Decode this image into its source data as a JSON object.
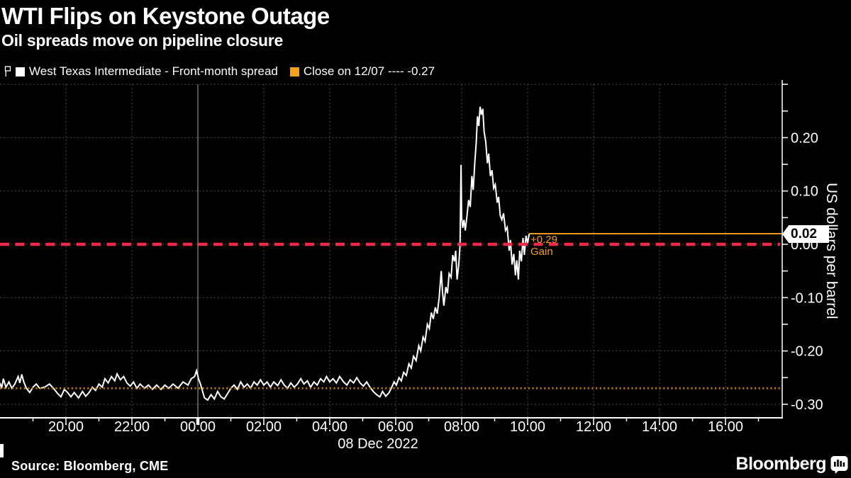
{
  "header": {
    "title": "WTI Flips on Keystone Outage",
    "subtitle": "Oil spreads move on pipeline closure"
  },
  "legend": {
    "series_label": "West Texas Intermediate - Front-month spread",
    "close_label": "Close on 12/07 ---- -0.27"
  },
  "axes": {
    "y_title": "US dollars per barrel",
    "x_date_label": "08 Dec 2022"
  },
  "annotations": {
    "last_price": "0.02",
    "change": "+0.29",
    "change_word": "Gain"
  },
  "footer": {
    "source": "Source: Bloomberg, CME",
    "brand": "Bloomberg"
  },
  "colors": {
    "background": "#000000",
    "series": "#ffffff",
    "zero_line_red": "#f0294b",
    "prior_close_dotted_orange": "#c07a0a",
    "last_price_orange": "#f0981e",
    "legend_orange": "#f59f1e",
    "grid": "#4f4f4f",
    "midnight_grid": "#909090",
    "axis": "#ffffff"
  },
  "chart_data": {
    "type": "line",
    "title": "WTI Flips on Keystone Outage",
    "subtitle": "Oil spreads move on pipeline closure",
    "xlabel": "08 Dec 2022",
    "ylabel": "US dollars per barrel",
    "x_unit": "hours since 2022-12-07 18:00",
    "xlim": [
      0,
      23.72
    ],
    "ylim": [
      -0.3255,
      0.3096
    ],
    "grid": "dashed gray both axes; solid gray vertical line at midnight",
    "legend_position": "top-left above plot",
    "x_ticks_major": [
      {
        "t": 2,
        "label": "20:00"
      },
      {
        "t": 4,
        "label": "22:00"
      },
      {
        "t": 6,
        "label": "00:00",
        "midnight": true
      },
      {
        "t": 8,
        "label": "02:00"
      },
      {
        "t": 10,
        "label": "04:00"
      },
      {
        "t": 12,
        "label": "06:00"
      },
      {
        "t": 14,
        "label": "08:00"
      },
      {
        "t": 16,
        "label": "10:00"
      },
      {
        "t": 18,
        "label": "12:00"
      },
      {
        "t": 20,
        "label": "14:00"
      },
      {
        "t": 22,
        "label": "16:00"
      }
    ],
    "x_ticks_minor": [
      1,
      3,
      5,
      7,
      9,
      11,
      13,
      15,
      17,
      19,
      21,
      23
    ],
    "y_ticks_labeled": [
      {
        "v": 0.2,
        "label": "0.20"
      },
      {
        "v": 0.1,
        "label": "0.10"
      },
      {
        "v": 0.0,
        "label": "0.00"
      },
      {
        "v": -0.1,
        "label": "-0.10"
      },
      {
        "v": -0.2,
        "label": "-0.20"
      },
      {
        "v": -0.3,
        "label": "-0.30"
      }
    ],
    "y_ticks_minor": [
      0.3,
      0.25,
      0.2,
      0.15,
      0.1,
      0.05,
      0.0,
      -0.05,
      -0.1,
      -0.15,
      -0.2,
      -0.25,
      -0.3
    ],
    "y_grid_values": [
      0.3,
      0.2,
      0.1,
      0.0,
      -0.1,
      -0.2,
      -0.3
    ],
    "reference_lines": [
      {
        "name": "zero",
        "value": 0.0,
        "style": "dashed",
        "color": "#f0294b"
      },
      {
        "name": "prior_close_12_07",
        "value": -0.27,
        "style": "dotted",
        "color": "#c07a0a"
      },
      {
        "name": "last_price",
        "value": 0.02,
        "style": "solid",
        "color": "#f0981e",
        "t_start": 16.05,
        "t_end": 23.72
      }
    ],
    "last_point": {
      "t": 16.05,
      "value": 0.02,
      "change_from_prior_close": 0.29
    },
    "series": [
      {
        "name": "West Texas Intermediate - Front-month spread",
        "color": "#ffffff",
        "points": [
          [
            0,
            -0.26
          ],
          [
            0.05,
            -0.27
          ],
          [
            0.1,
            -0.252
          ],
          [
            0.18,
            -0.268
          ],
          [
            0.27,
            -0.258
          ],
          [
            0.36,
            -0.27
          ],
          [
            0.45,
            -0.262
          ],
          [
            0.55,
            -0.248
          ],
          [
            0.6,
            -0.26
          ],
          [
            0.66,
            -0.244
          ],
          [
            0.72,
            -0.258
          ],
          [
            0.8,
            -0.27
          ],
          [
            0.9,
            -0.278
          ],
          [
            1,
            -0.268
          ],
          [
            1.1,
            -0.262
          ],
          [
            1.2,
            -0.27
          ],
          [
            1.35,
            -0.268
          ],
          [
            1.5,
            -0.262
          ],
          [
            1.62,
            -0.27
          ],
          [
            1.75,
            -0.28
          ],
          [
            1.85,
            -0.286
          ],
          [
            1.95,
            -0.272
          ],
          [
            2.05,
            -0.278
          ],
          [
            2.15,
            -0.286
          ],
          [
            2.25,
            -0.278
          ],
          [
            2.38,
            -0.288
          ],
          [
            2.5,
            -0.276
          ],
          [
            2.6,
            -0.285
          ],
          [
            2.7,
            -0.278
          ],
          [
            2.8,
            -0.268
          ],
          [
            2.9,
            -0.274
          ],
          [
            3,
            -0.262
          ],
          [
            3.1,
            -0.268
          ],
          [
            3.18,
            -0.252
          ],
          [
            3.28,
            -0.26
          ],
          [
            3.38,
            -0.248
          ],
          [
            3.48,
            -0.256
          ],
          [
            3.55,
            -0.243
          ],
          [
            3.65,
            -0.254
          ],
          [
            3.75,
            -0.248
          ],
          [
            3.85,
            -0.26
          ],
          [
            3.95,
            -0.266
          ],
          [
            4.05,
            -0.258
          ],
          [
            4.15,
            -0.27
          ],
          [
            4.25,
            -0.262
          ],
          [
            4.38,
            -0.27
          ],
          [
            4.5,
            -0.264
          ],
          [
            4.62,
            -0.272
          ],
          [
            4.75,
            -0.264
          ],
          [
            4.88,
            -0.272
          ],
          [
            5,
            -0.264
          ],
          [
            5.12,
            -0.27
          ],
          [
            5.25,
            -0.262
          ],
          [
            5.4,
            -0.27
          ],
          [
            5.55,
            -0.258
          ],
          [
            5.7,
            -0.264
          ],
          [
            5.8,
            -0.252
          ],
          [
            5.9,
            -0.248
          ],
          [
            5.96,
            -0.237
          ],
          [
            6.02,
            -0.252
          ],
          [
            6.08,
            -0.262
          ],
          [
            6.14,
            -0.275
          ],
          [
            6.2,
            -0.288
          ],
          [
            6.3,
            -0.292
          ],
          [
            6.4,
            -0.282
          ],
          [
            6.5,
            -0.29
          ],
          [
            6.6,
            -0.276
          ],
          [
            6.7,
            -0.286
          ],
          [
            6.8,
            -0.29
          ],
          [
            6.9,
            -0.28
          ],
          [
            7,
            -0.27
          ],
          [
            7.1,
            -0.264
          ],
          [
            7.2,
            -0.272
          ],
          [
            7.3,
            -0.258
          ],
          [
            7.4,
            -0.268
          ],
          [
            7.5,
            -0.262
          ],
          [
            7.6,
            -0.27
          ],
          [
            7.7,
            -0.258
          ],
          [
            7.8,
            -0.264
          ],
          [
            7.9,
            -0.254
          ],
          [
            8,
            -0.264
          ],
          [
            8.1,
            -0.258
          ],
          [
            8.2,
            -0.268
          ],
          [
            8.3,
            -0.258
          ],
          [
            8.42,
            -0.265
          ],
          [
            8.52,
            -0.254
          ],
          [
            8.62,
            -0.264
          ],
          [
            8.72,
            -0.27
          ],
          [
            8.82,
            -0.26
          ],
          [
            8.92,
            -0.268
          ],
          [
            9.02,
            -0.262
          ],
          [
            9.12,
            -0.252
          ],
          [
            9.22,
            -0.262
          ],
          [
            9.32,
            -0.256
          ],
          [
            9.42,
            -0.268
          ],
          [
            9.52,
            -0.258
          ],
          [
            9.62,
            -0.264
          ],
          [
            9.72,
            -0.252
          ],
          [
            9.82,
            -0.258
          ],
          [
            9.9,
            -0.248
          ],
          [
            10,
            -0.258
          ],
          [
            10.1,
            -0.252
          ],
          [
            10.2,
            -0.26
          ],
          [
            10.3,
            -0.248
          ],
          [
            10.42,
            -0.258
          ],
          [
            10.52,
            -0.264
          ],
          [
            10.62,
            -0.254
          ],
          [
            10.72,
            -0.26
          ],
          [
            10.82,
            -0.25
          ],
          [
            10.92,
            -0.26
          ],
          [
            11.02,
            -0.266
          ],
          [
            11.12,
            -0.258
          ],
          [
            11.22,
            -0.268
          ],
          [
            11.32,
            -0.276
          ],
          [
            11.42,
            -0.282
          ],
          [
            11.52,
            -0.286
          ],
          [
            11.6,
            -0.276
          ],
          [
            11.7,
            -0.285
          ],
          [
            11.8,
            -0.278
          ],
          [
            11.88,
            -0.268
          ],
          [
            11.95,
            -0.258
          ],
          [
            12.02,
            -0.264
          ],
          [
            12.1,
            -0.25
          ],
          [
            12.17,
            -0.256
          ],
          [
            12.24,
            -0.24
          ],
          [
            12.32,
            -0.246
          ],
          [
            12.4,
            -0.224
          ],
          [
            12.47,
            -0.232
          ],
          [
            12.54,
            -0.21
          ],
          [
            12.62,
            -0.218
          ],
          [
            12.7,
            -0.19
          ],
          [
            12.76,
            -0.2
          ],
          [
            12.83,
            -0.174
          ],
          [
            12.89,
            -0.182
          ],
          [
            12.96,
            -0.15
          ],
          [
            13.02,
            -0.158
          ],
          [
            13.08,
            -0.128
          ],
          [
            13.14,
            -0.14
          ],
          [
            13.2,
            -0.118
          ],
          [
            13.26,
            -0.13
          ],
          [
            13.32,
            -0.098
          ],
          [
            13.38,
            -0.05
          ],
          [
            13.42,
            -0.09
          ],
          [
            13.46,
            -0.115
          ],
          [
            13.52,
            -0.08
          ],
          [
            13.57,
            -0.092
          ],
          [
            13.62,
            -0.055
          ],
          [
            13.68,
            -0.062
          ],
          [
            13.73,
            -0.02
          ],
          [
            13.78,
            -0.032
          ],
          [
            13.82,
            -0.012
          ],
          [
            13.86,
            -0.066
          ],
          [
            13.91,
            -0.04
          ],
          [
            13.95,
            -0.002
          ],
          [
            13.98,
            0.149
          ],
          [
            14,
            0.05
          ],
          [
            14.03,
            0.031
          ],
          [
            14.07,
            0.046
          ],
          [
            14.11,
            0.026
          ],
          [
            14.16,
            0.052
          ],
          [
            14.21,
            0.083
          ],
          [
            14.26,
            0.07
          ],
          [
            14.31,
            0.128
          ],
          [
            14.35,
            0.102
          ],
          [
            14.4,
            0.155
          ],
          [
            14.44,
            0.19
          ],
          [
            14.48,
            0.24
          ],
          [
            14.52,
            0.222
          ],
          [
            14.56,
            0.258
          ],
          [
            14.6,
            0.243
          ],
          [
            14.64,
            0.254
          ],
          [
            14.68,
            0.212
          ],
          [
            14.73,
            0.193
          ],
          [
            14.78,
            0.152
          ],
          [
            14.82,
            0.17
          ],
          [
            14.87,
            0.128
          ],
          [
            14.92,
            0.139
          ],
          [
            14.97,
            0.105
          ],
          [
            15.02,
            0.112
          ],
          [
            15.08,
            0.078
          ],
          [
            15.12,
            0.089
          ],
          [
            15.17,
            0.054
          ],
          [
            15.22,
            0.046
          ],
          [
            15.27,
            0.058
          ],
          [
            15.33,
            0.026
          ],
          [
            15.38,
            0.032
          ],
          [
            15.44,
            -0.012
          ],
          [
            15.48,
            0.008
          ],
          [
            15.53,
            -0.038
          ],
          [
            15.58,
            -0.018
          ],
          [
            15.63,
            -0.058
          ],
          [
            15.67,
            -0.03
          ],
          [
            15.72,
            -0.066
          ],
          [
            15.76,
            -0.012
          ],
          [
            15.81,
            -0.032
          ],
          [
            15.86,
            0.012
          ],
          [
            15.9,
            -0.02
          ],
          [
            15.95,
            0.016
          ],
          [
            16,
            0.002
          ],
          [
            16.05,
            0.02
          ]
        ]
      }
    ]
  }
}
